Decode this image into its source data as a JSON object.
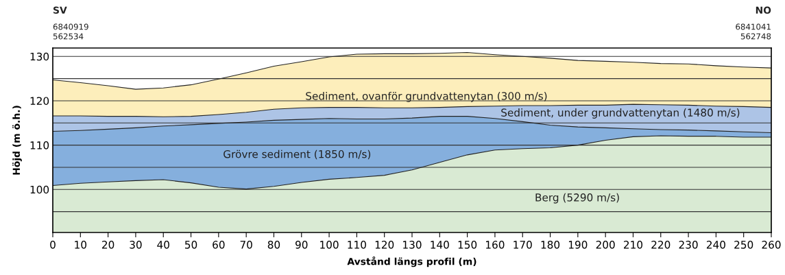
{
  "chart_data": {
    "type": "area",
    "xlabel": "Avstånd längs profil (m)",
    "ylabel": "Höjd (m ö.h.)",
    "x": [
      0,
      10,
      20,
      30,
      40,
      50,
      60,
      70,
      80,
      90,
      100,
      110,
      120,
      130,
      140,
      150,
      160,
      170,
      180,
      190,
      200,
      210,
      220,
      230,
      240,
      250,
      260
    ],
    "series": [
      {
        "name": "Sediment, ovanför grundvattenytan (300 m/s)",
        "color": "#fdeebb",
        "values": [
          124.7,
          124.1,
          123.4,
          122.6,
          122.9,
          123.6,
          124.9,
          126.3,
          127.8,
          128.8,
          129.9,
          130.5,
          130.6,
          130.6,
          130.7,
          130.9,
          130.4,
          130.0,
          129.6,
          129.1,
          128.9,
          128.7,
          128.4,
          128.3,
          127.9,
          127.6,
          127.4
        ]
      },
      {
        "name": "Sediment, under grundvattenytan (1480 m/s)",
        "color": "#adc4e6",
        "values": [
          116.6,
          116.6,
          116.5,
          116.5,
          116.4,
          116.5,
          116.9,
          117.4,
          118.1,
          118.4,
          118.5,
          118.5,
          118.4,
          118.4,
          118.5,
          118.7,
          118.8,
          118.9,
          118.9,
          119.0,
          119.0,
          119.2,
          119.1,
          119.0,
          118.8,
          118.7,
          118.5
        ]
      },
      {
        "name": "Grövre sediment (1850 m/s)",
        "color": "#85afdd",
        "values": [
          113.1,
          113.3,
          113.6,
          113.9,
          114.3,
          114.6,
          114.9,
          115.2,
          115.6,
          115.8,
          116.0,
          115.9,
          115.9,
          116.1,
          116.5,
          116.5,
          116.0,
          115.3,
          114.5,
          114.1,
          113.9,
          113.7,
          113.5,
          113.4,
          113.2,
          113.0,
          112.8
        ]
      },
      {
        "name": "Berg (5290 m/s)",
        "color": "#d9ead3",
        "values": [
          100.9,
          101.4,
          101.7,
          102.0,
          102.2,
          101.5,
          100.5,
          100.1,
          100.7,
          101.6,
          102.3,
          102.7,
          103.2,
          104.4,
          106.1,
          107.8,
          108.9,
          109.2,
          109.4,
          110.0,
          111.1,
          111.9,
          112.1,
          112.0,
          112.0,
          111.8,
          111.8
        ]
      }
    ],
    "xlim": [
      0,
      260
    ],
    "xticks": [
      0,
      10,
      20,
      30,
      40,
      50,
      60,
      70,
      80,
      90,
      100,
      110,
      120,
      130,
      140,
      150,
      160,
      170,
      180,
      190,
      200,
      210,
      220,
      230,
      240,
      250,
      260
    ],
    "ylim": [
      90.3,
      131.9
    ],
    "yticks": [
      {
        "value": 95,
        "label": null
      },
      100,
      {
        "value": 105,
        "label": null
      },
      110,
      {
        "value": 115,
        "label": null
      },
      120,
      {
        "value": 125,
        "label": null
      },
      130
    ],
    "grid": "y",
    "annotations": [
      "SV",
      "6840919",
      "562534",
      "NO",
      "6841041",
      "562748"
    ]
  }
}
